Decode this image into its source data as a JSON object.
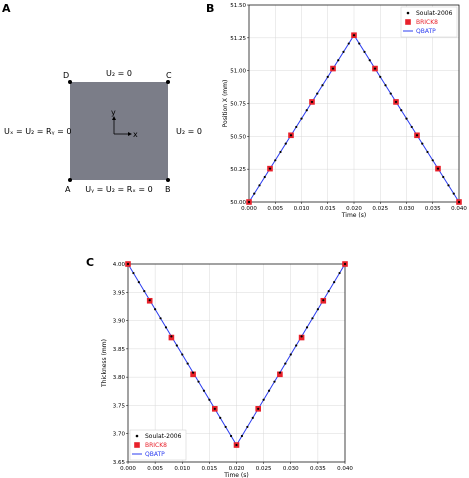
{
  "panel_a": {
    "letter": "A",
    "corners": {
      "a": "A",
      "b": "B",
      "c": "C",
      "d": "D"
    },
    "bc_top": "U₂ = 0",
    "bc_right": "U₂ = 0",
    "bc_left": "Uₓ = U₂ = Rᵧ = 0",
    "bc_bottom": "Uᵧ = U₂ = Rₓ = 0",
    "axis_x": "x",
    "axis_y": "y",
    "square_color": "#7b7d88"
  },
  "chart_data": [
    {
      "panel": "B",
      "type": "line",
      "xlabel": "Time (s)",
      "ylabel": "Position X (mm)",
      "xlim": [
        0.0,
        0.04
      ],
      "ylim": [
        50.0,
        51.5
      ],
      "xticks": [
        "0.000",
        "0.005",
        "0.010",
        "0.015",
        "0.020",
        "0.025",
        "0.030",
        "0.035",
        "0.040"
      ],
      "yticks": [
        "50.00",
        "50.25",
        "50.50",
        "50.75",
        "51.00",
        "51.25",
        "51.50"
      ],
      "legend_position": "top-right",
      "legend": [
        "Soulat-2006",
        "BRICK8",
        "QBATP"
      ],
      "series": [
        {
          "name": "Soulat-2006",
          "marker": "dot",
          "color": "#000000",
          "x": [
            0.0,
            0.001,
            0.002,
            0.003,
            0.004,
            0.005,
            0.006,
            0.007,
            0.008,
            0.009,
            0.01,
            0.011,
            0.012,
            0.013,
            0.014,
            0.015,
            0.016,
            0.017,
            0.018,
            0.019,
            0.02,
            0.021,
            0.022,
            0.023,
            0.024,
            0.025,
            0.026,
            0.027,
            0.028,
            0.029,
            0.03,
            0.031,
            0.032,
            0.033,
            0.034,
            0.035,
            0.036,
            0.037,
            0.038,
            0.039,
            0.04
          ],
          "y": [
            50.0,
            50.0635,
            50.127,
            50.1905,
            50.254,
            50.3175,
            50.381,
            50.4445,
            50.508,
            50.5715,
            50.635,
            50.6985,
            50.762,
            50.8255,
            50.889,
            50.9525,
            51.016,
            51.0795,
            51.143,
            51.2065,
            51.27,
            51.2065,
            51.143,
            51.0795,
            51.016,
            50.9525,
            50.889,
            50.8255,
            50.762,
            50.6985,
            50.635,
            50.5715,
            50.508,
            50.4445,
            50.381,
            50.3175,
            50.254,
            50.1905,
            50.127,
            50.0635,
            50.0
          ]
        },
        {
          "name": "BRICK8",
          "marker": "square",
          "color": "#e8202a",
          "x": [
            0.0,
            0.004,
            0.008,
            0.012,
            0.016,
            0.02,
            0.024,
            0.028,
            0.032,
            0.036,
            0.04
          ],
          "y": [
            50.0,
            50.254,
            50.508,
            50.762,
            51.016,
            51.27,
            51.016,
            50.762,
            50.508,
            50.254,
            50.0
          ]
        },
        {
          "name": "QBATP",
          "marker": "line",
          "color": "#2b3cf0",
          "x": [
            0.0,
            0.02,
            0.04
          ],
          "y": [
            50.0,
            51.27,
            50.0
          ]
        }
      ]
    },
    {
      "panel": "C",
      "type": "line",
      "xlabel": "Time (s)",
      "ylabel": "Thickness (mm)",
      "xlim": [
        0.0,
        0.04
      ],
      "ylim": [
        3.65,
        4.0
      ],
      "xticks": [
        "0.000",
        "0.005",
        "0.010",
        "0.015",
        "0.020",
        "0.025",
        "0.030",
        "0.035",
        "0.040"
      ],
      "yticks": [
        "3.65",
        "3.70",
        "3.75",
        "3.80",
        "3.85",
        "3.90",
        "3.95",
        "4.00"
      ],
      "legend_position": "bottom-left",
      "legend": [
        "Soulat-2006",
        "BRICK8",
        "QBATP"
      ],
      "series": [
        {
          "name": "Soulat-2006",
          "marker": "dot",
          "color": "#000000",
          "x": [
            0.0,
            0.001,
            0.002,
            0.003,
            0.004,
            0.005,
            0.006,
            0.007,
            0.008,
            0.009,
            0.01,
            0.011,
            0.012,
            0.013,
            0.014,
            0.015,
            0.016,
            0.017,
            0.018,
            0.019,
            0.02,
            0.021,
            0.022,
            0.023,
            0.024,
            0.025,
            0.026,
            0.027,
            0.028,
            0.029,
            0.03,
            0.031,
            0.032,
            0.033,
            0.034,
            0.035,
            0.036,
            0.037,
            0.038,
            0.039,
            0.04
          ],
          "y": [
            4.0,
            3.984,
            3.968,
            3.952,
            3.936,
            3.92,
            3.904,
            3.888,
            3.872,
            3.856,
            3.84,
            3.824,
            3.808,
            3.792,
            3.776,
            3.76,
            3.744,
            3.728,
            3.712,
            3.696,
            3.68,
            3.696,
            3.712,
            3.728,
            3.744,
            3.76,
            3.776,
            3.792,
            3.808,
            3.824,
            3.84,
            3.856,
            3.872,
            3.888,
            3.904,
            3.92,
            3.936,
            3.952,
            3.968,
            3.984,
            4.0
          ]
        },
        {
          "name": "BRICK8",
          "marker": "square",
          "color": "#e8202a",
          "x": [
            0.0,
            0.004,
            0.008,
            0.012,
            0.016,
            0.02,
            0.024,
            0.028,
            0.032,
            0.036,
            0.04
          ],
          "y": [
            4.0,
            3.935,
            3.87,
            3.805,
            3.744,
            3.68,
            3.744,
            3.805,
            3.87,
            3.935,
            4.0
          ]
        },
        {
          "name": "QBATP",
          "marker": "line",
          "color": "#2b3cf0",
          "x": [
            0.0,
            0.02,
            0.04
          ],
          "y": [
            4.0,
            3.68,
            4.0
          ]
        }
      ]
    }
  ]
}
